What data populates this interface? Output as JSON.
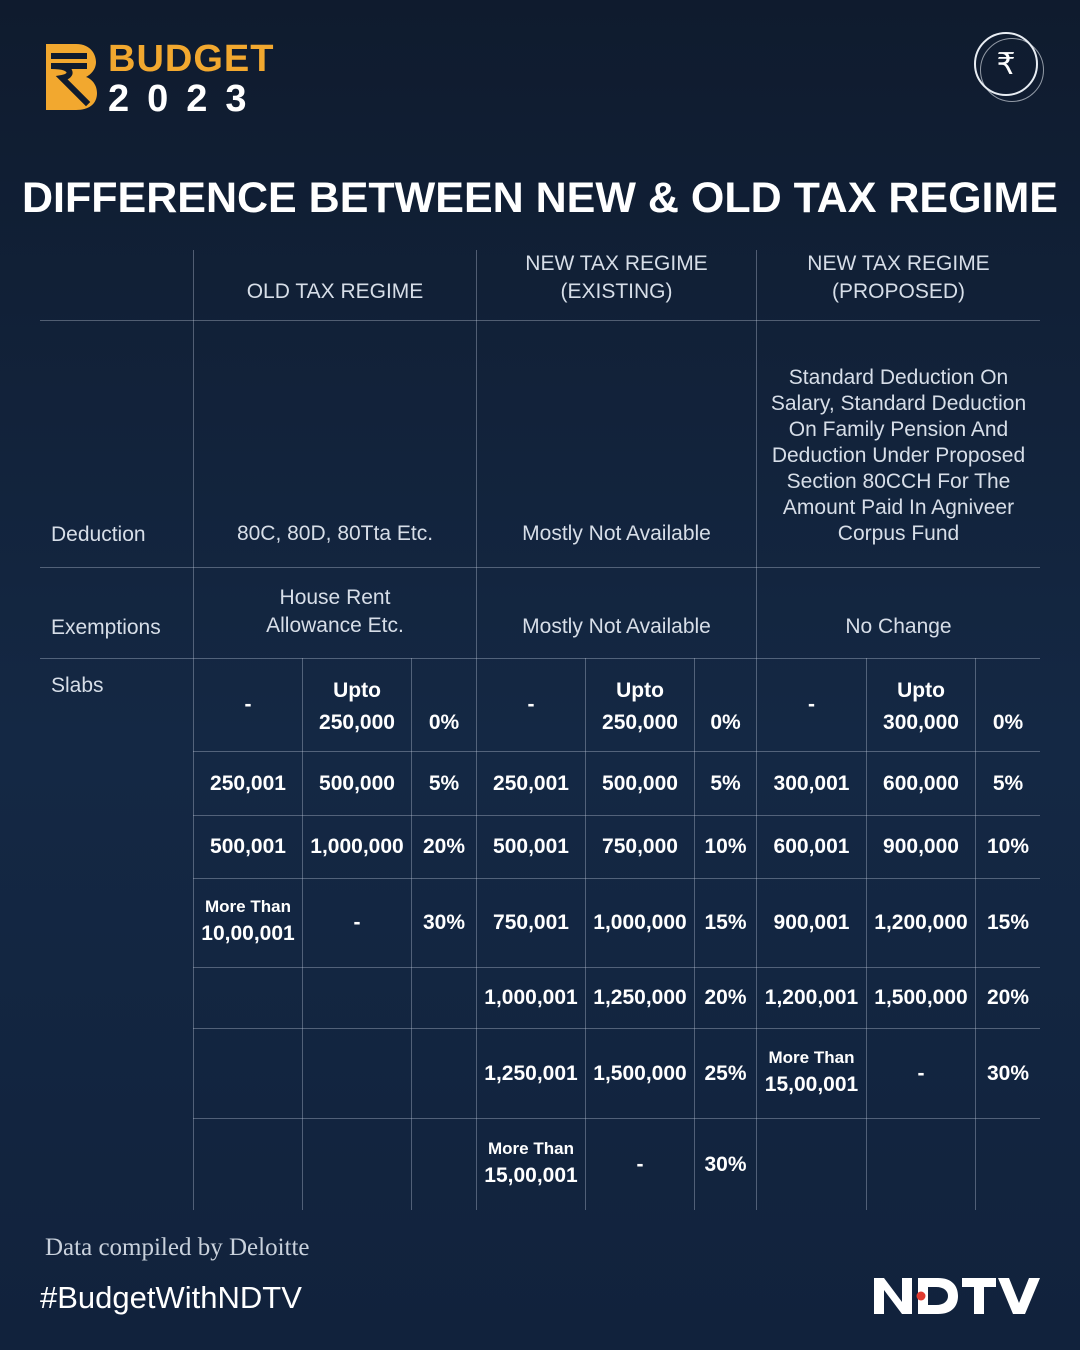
{
  "logo": {
    "word": "BUDGET",
    "year": "2023",
    "mark_icon": "rupee-b-mark"
  },
  "header_icon": {
    "glyph": "₹",
    "name": "rupee-icon"
  },
  "title": "DIFFERENCE BETWEEN NEW & OLD TAX REGIME",
  "columns": {
    "old": "OLD TAX REGIME",
    "new_existing": "NEW TAX REGIME\n(EXISTING)",
    "new_proposed": "NEW TAX REGIME\n(PROPOSED)"
  },
  "rows": {
    "deduction": {
      "label": "Deduction",
      "old": "80C, 80D, 80Tta Etc.",
      "new_existing": "Mostly Not Available",
      "new_proposed": "Standard Deduction On Salary, Standard Deduction On Family Pension And  Deduction Under Proposed Section 80CCH For The Amount Paid In Agniveer Corpus Fund"
    },
    "exemptions": {
      "label": "Exemptions",
      "old": "House Rent\nAllowance Etc.",
      "new_existing": "Mostly Not Available",
      "new_proposed": "No Change"
    },
    "slabs_label": "Slabs"
  },
  "slabs": {
    "old": [
      [
        "-",
        "Upto\n250,000",
        "0%"
      ],
      [
        "250,001",
        "500,000",
        "5%"
      ],
      [
        "500,001",
        "1,000,000",
        "20%"
      ],
      [
        "More Than|10,00,001",
        "-",
        "30%"
      ],
      [
        "",
        "",
        ""
      ],
      [
        "",
        "",
        ""
      ],
      [
        "",
        "",
        ""
      ]
    ],
    "new_existing": [
      [
        "-",
        "Upto\n250,000",
        "0%"
      ],
      [
        "250,001",
        "500,000",
        "5%"
      ],
      [
        "500,001",
        "750,000",
        "10%"
      ],
      [
        "750,001",
        "1,000,000",
        "15%"
      ],
      [
        "1,000,001",
        "1,250,000",
        "20%"
      ],
      [
        "1,250,001",
        "1,500,000",
        "25%"
      ],
      [
        "More Than|15,00,001",
        "-",
        "30%"
      ]
    ],
    "new_proposed": [
      [
        "-",
        "Upto\n300,000",
        "0%"
      ],
      [
        "300,001",
        "600,000",
        "5%"
      ],
      [
        "600,001",
        "900,000",
        "10%"
      ],
      [
        "900,001",
        "1,200,000",
        "15%"
      ],
      [
        "1,200,001",
        "1,500,000",
        "20%"
      ],
      [
        "More Than|15,00,001",
        "-",
        "30%"
      ],
      [
        "",
        "",
        ""
      ]
    ]
  },
  "footer": {
    "source": "Data compiled by Deloitte",
    "hashtag": "#BudgetWithNDTV",
    "brand": "NDTV"
  },
  "colors": {
    "accent": "#f2a82f",
    "background": "#12233b",
    "ndtv_dot": "#e03a2f"
  }
}
